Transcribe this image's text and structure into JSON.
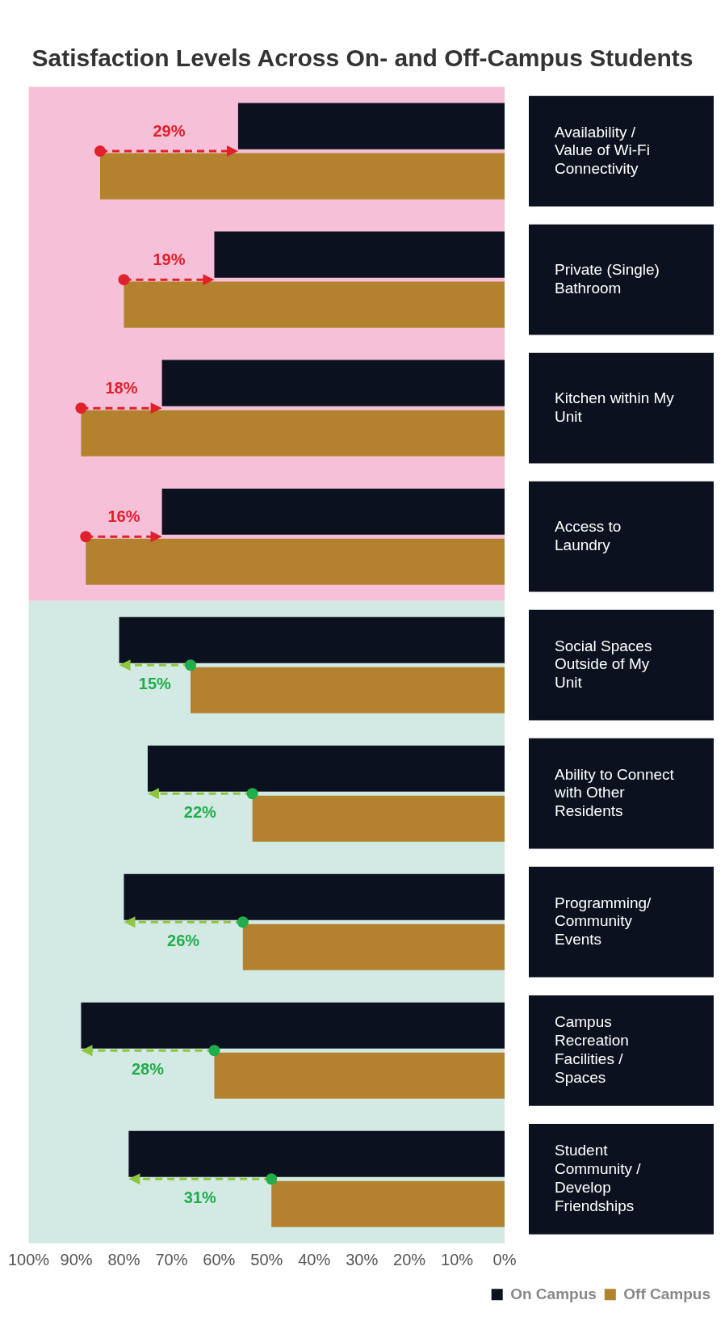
{
  "chart_data": {
    "type": "bar",
    "orientation": "horizontal",
    "title": "Satisfaction Levels Across On- and Off-Campus Students",
    "categories": [
      "Availability / Value of Wi-Fi Connectivity",
      "Private (Single) Bathroom",
      "Kitchen within My Unit",
      "Access to Laundry",
      "Social Spaces Outside of My Unit",
      "Ability to Connect with Other Residents",
      "Programming/ Community Events",
      "Campus Recreation Facilities / Spaces",
      "Student Community / Develop Friendships"
    ],
    "series": [
      {
        "name": "On Campus",
        "color": "#0b111e",
        "values": [
          56,
          61,
          72,
          72,
          81,
          75,
          80,
          89,
          79
        ]
      },
      {
        "name": "Off Campus",
        "color": "#b3822e",
        "values": [
          85,
          80,
          89,
          88,
          66,
          53,
          55,
          61,
          49
        ]
      }
    ],
    "xlim": [
      100,
      0
    ],
    "xticks": [
      {
        "value": 100,
        "label": "100%"
      },
      {
        "value": 90,
        "label": "90%"
      },
      {
        "value": 80,
        "label": "80%"
      },
      {
        "value": 70,
        "label": "70%"
      },
      {
        "value": 60,
        "label": "60%"
      },
      {
        "value": 50,
        "label": "50%"
      },
      {
        "value": 40,
        "label": "40%"
      },
      {
        "value": 30,
        "label": "30%"
      },
      {
        "value": 20,
        "label": "20%"
      },
      {
        "value": 10,
        "label": "10%"
      },
      {
        "value": 0,
        "label": "0%"
      }
    ],
    "bands": [
      {
        "axis": "y",
        "from": "Availability / Value of Wi-Fi Connectivity",
        "to": "Access to Laundry",
        "color": "#f5c0d8"
      },
      {
        "axis": "y",
        "from": "Social Spaces Outside of My Unit",
        "to": "Student Community / Develop Friendships",
        "color": "#d3e9e3"
      }
    ],
    "annotations": [
      "29%",
      "19%",
      "18%",
      "16%",
      "15%",
      "22%",
      "26%",
      "28%",
      "31%"
    ],
    "grid": false,
    "legend": "bottom right"
  }
}
